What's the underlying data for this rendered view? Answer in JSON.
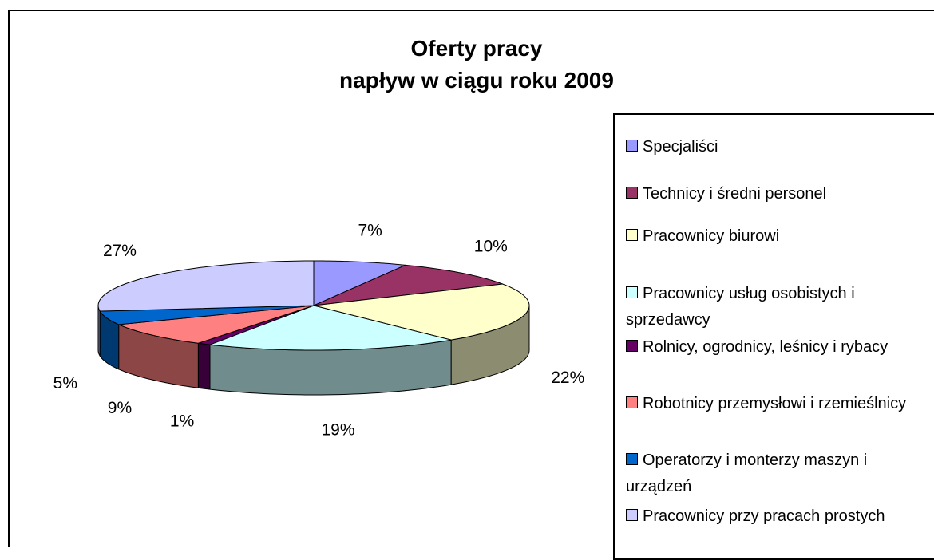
{
  "chart_data": {
    "type": "pie",
    "title": [
      "Oferty pracy",
      "napływ w ciągu roku 2009"
    ],
    "categories": [
      "Specjaliści",
      "Technicy i średni personel",
      "Pracownicy biurowi",
      "Pracownicy usług osobistych i sprzedawcy",
      "Rolnicy, ogrodnicy, leśnicy i rybacy",
      "Robotnicy przemysłowi i rzemieślnicy",
      "Operatorzy i monterzy maszyn i urządzeń",
      "Pracownicy przy pracach prostych"
    ],
    "values": [
      7,
      10,
      22,
      19,
      1,
      9,
      5,
      27
    ],
    "value_labels": [
      "7%",
      "10%",
      "22%",
      "19%",
      "1%",
      "9%",
      "5%",
      "27%"
    ],
    "colors": [
      "#9999ff",
      "#993366",
      "#ffffcc",
      "#ccffff",
      "#660066",
      "#ff8080",
      "#0066cc",
      "#ccccff"
    ],
    "legend": "right"
  }
}
